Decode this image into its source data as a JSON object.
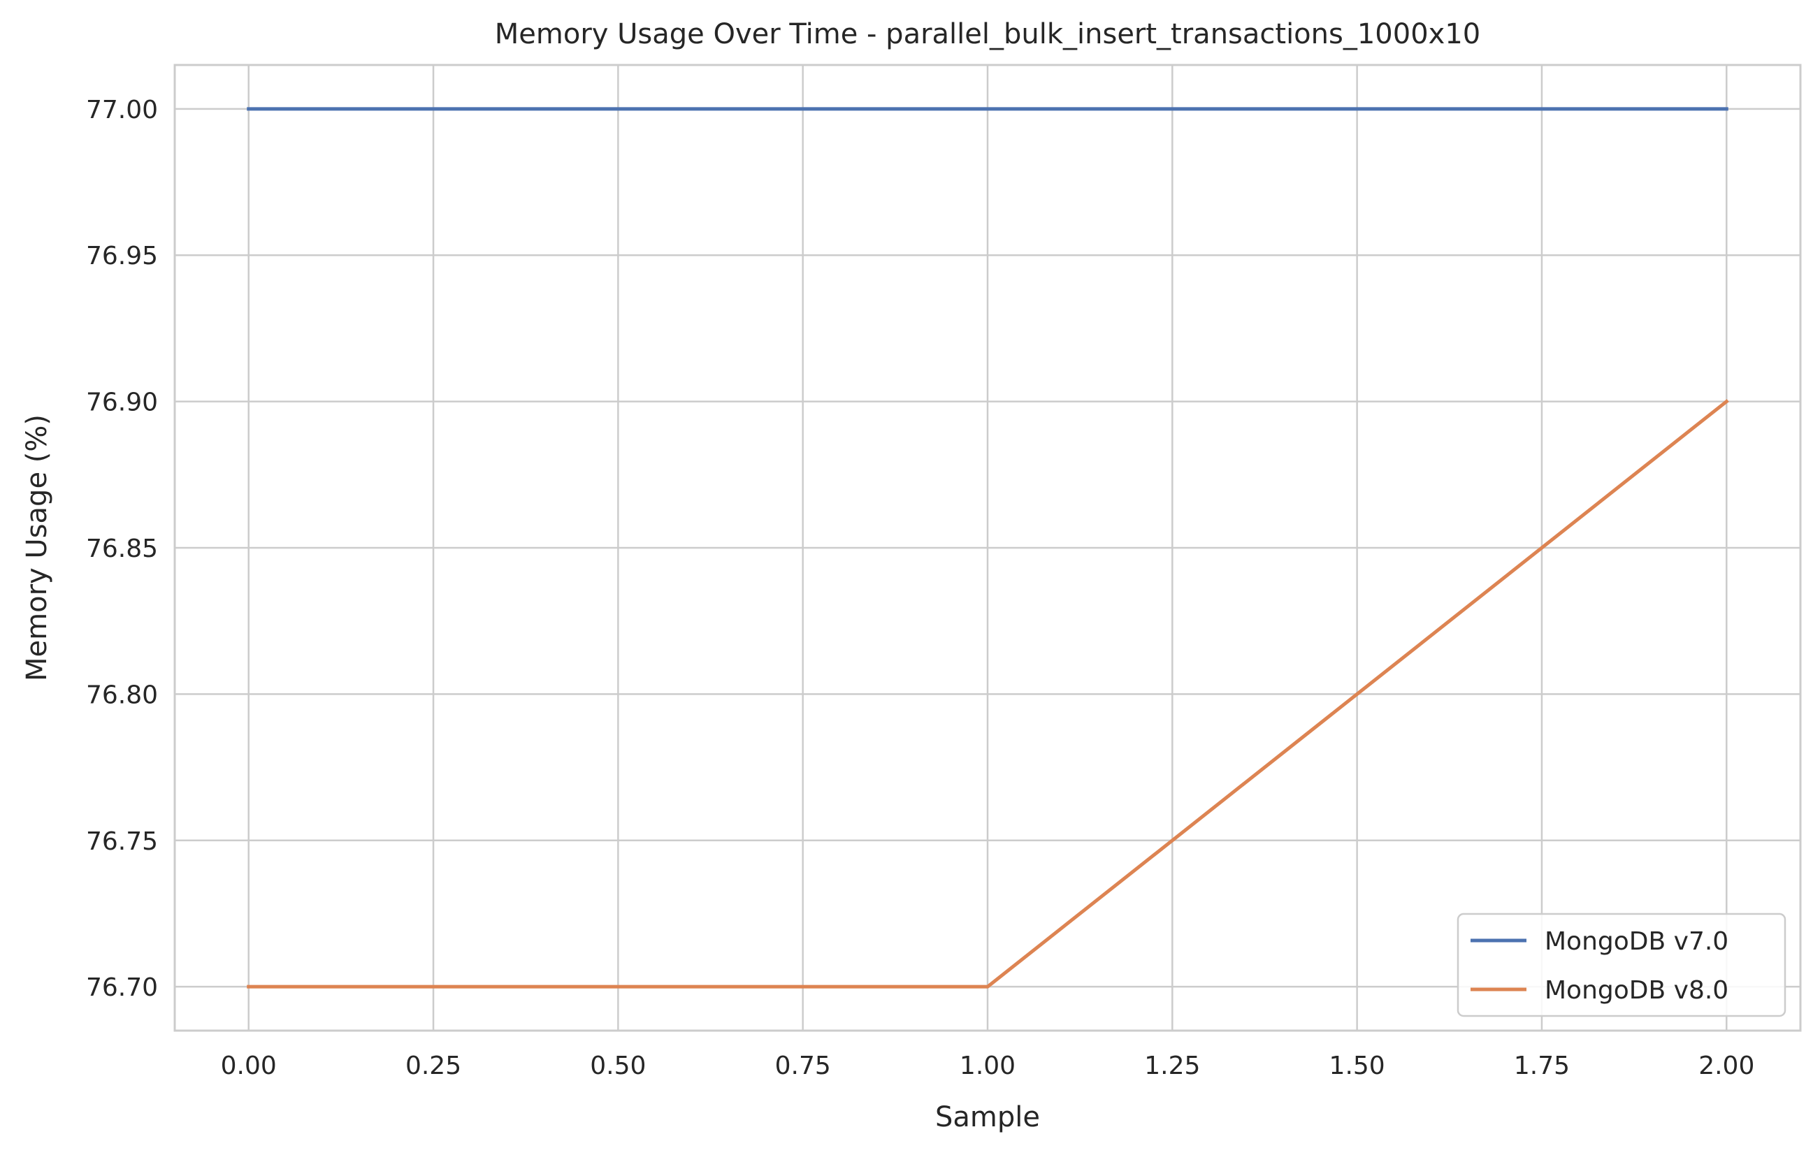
{
  "chart_data": {
    "type": "line",
    "title": "Memory Usage Over Time - parallel_bulk_insert_transactions_1000x10",
    "xlabel": "Sample",
    "ylabel": "Memory Usage (%)",
    "x": [
      0,
      1,
      2
    ],
    "series": [
      {
        "name": "MongoDB v7.0",
        "color": "#4c72b0",
        "values": [
          77.0,
          77.0,
          77.0
        ]
      },
      {
        "name": "MongoDB v8.0",
        "color": "#dd8452",
        "values": [
          76.7,
          76.7,
          76.9
        ]
      }
    ],
    "xlim": [
      -0.1,
      2.1
    ],
    "ylim": [
      76.685,
      77.015
    ],
    "xticks": [
      0.0,
      0.25,
      0.5,
      0.75,
      1.0,
      1.25,
      1.5,
      1.75,
      2.0
    ],
    "xtick_labels": [
      "0.00",
      "0.25",
      "0.50",
      "0.75",
      "1.00",
      "1.25",
      "1.50",
      "1.75",
      "2.00"
    ],
    "yticks": [
      76.7,
      76.75,
      76.8,
      76.85,
      76.9,
      76.95,
      77.0
    ],
    "ytick_labels": [
      "76.70",
      "76.75",
      "76.80",
      "76.85",
      "76.90",
      "76.95",
      "77.00"
    ],
    "grid": true,
    "legend_position": "lower-right"
  }
}
